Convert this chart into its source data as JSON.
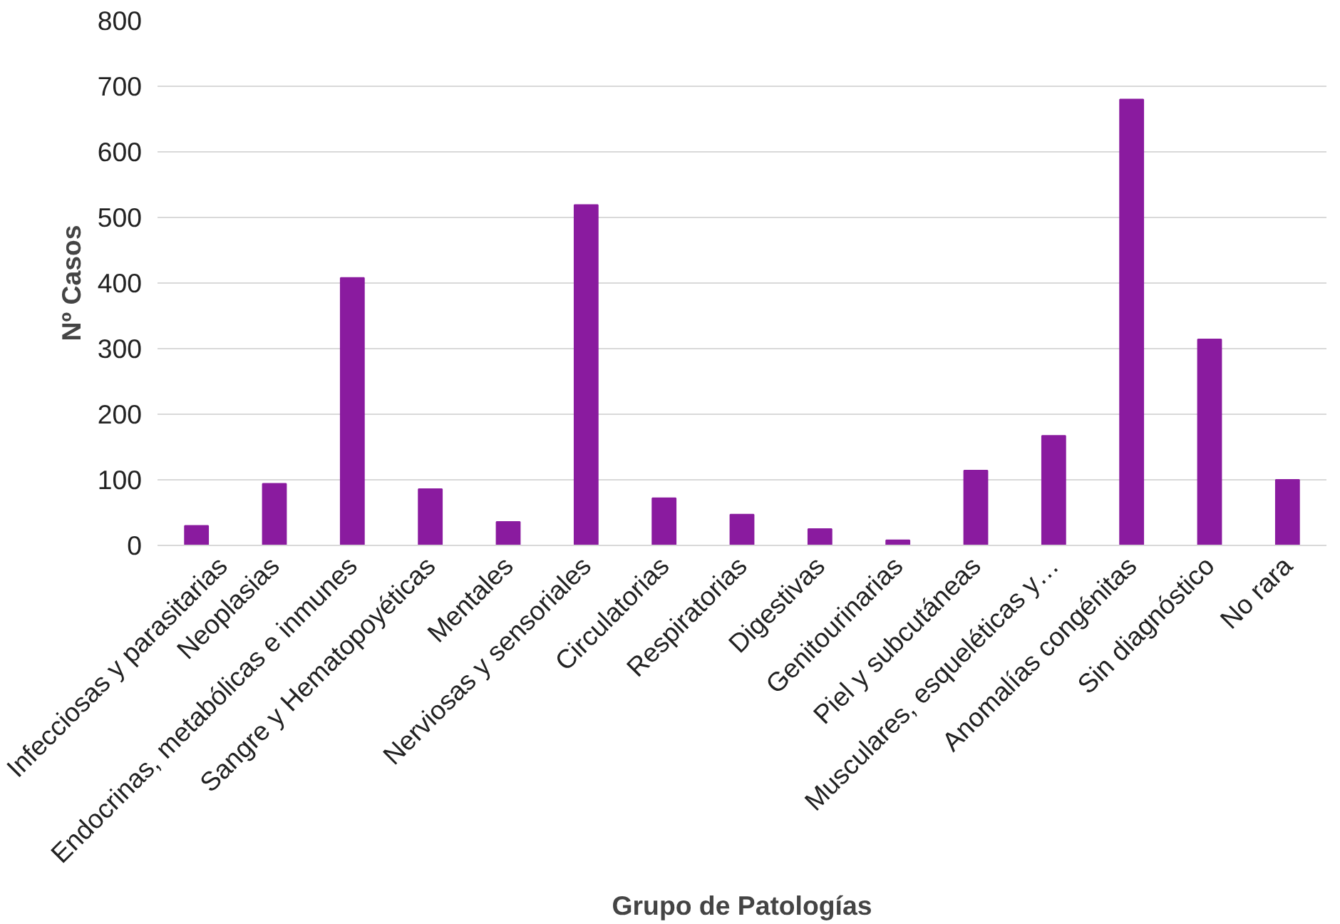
{
  "chart_data": {
    "type": "bar",
    "xlabel": "Grupo de Patologías",
    "ylabel": "Nº Casos",
    "categories": [
      "Infecciosas y parasitarias",
      "Neoplasias",
      "Endocrinas, metabólicas e inmunes",
      "Sangre y Hematopoyéticas",
      "Mentales",
      "Nerviosas y sensoriales",
      "Circulatorias",
      "Respiratorias",
      "Digestivas",
      "Genitourinarias",
      "Piel y subcutáneas",
      "Musculares, esqueléticas y…",
      "Anomalías congénitas",
      "Sin diagnóstico",
      "No rara"
    ],
    "values": [
      30,
      94,
      408,
      86,
      36,
      519,
      72,
      47,
      25,
      8,
      114,
      167,
      680,
      314,
      100
    ],
    "color": "#8a1b9f",
    "ylim": [
      0,
      800
    ],
    "yticks": [
      0,
      100,
      200,
      300,
      400,
      500,
      600,
      700,
      800
    ],
    "grid": "y"
  }
}
